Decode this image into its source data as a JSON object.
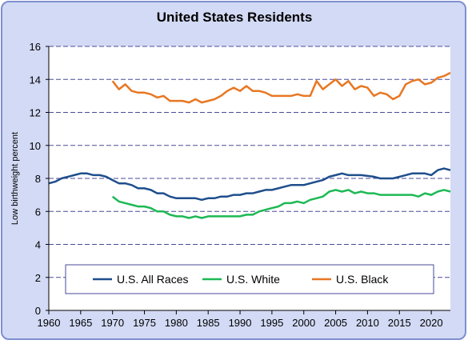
{
  "chart_data": {
    "type": "line",
    "title": "United States Residents",
    "xlabel": "",
    "ylabel": "Low birthweight percent",
    "xlim": [
      1960,
      2023
    ],
    "ylim": [
      0,
      16
    ],
    "x_ticks": [
      "1960",
      "1965",
      "1970",
      "1975",
      "1980",
      "1985",
      "1990",
      "1995",
      "2000",
      "2005",
      "2010",
      "2015",
      "2020"
    ],
    "y_ticks": [
      "0",
      "2",
      "4",
      "6",
      "8",
      "10",
      "12",
      "14",
      "16"
    ],
    "grid": "horizontal dashed",
    "legend_position": "bottom-inside",
    "series": [
      {
        "name": "U.S. All Races",
        "color": "#1f4e8c",
        "points": [
          [
            1960,
            7.7
          ],
          [
            1961,
            7.8
          ],
          [
            1962,
            8.0
          ],
          [
            1963,
            8.1
          ],
          [
            1964,
            8.2
          ],
          [
            1965,
            8.3
          ],
          [
            1966,
            8.3
          ],
          [
            1967,
            8.2
          ],
          [
            1968,
            8.2
          ],
          [
            1969,
            8.1
          ],
          [
            1970,
            7.9
          ],
          [
            1971,
            7.7
          ],
          [
            1972,
            7.7
          ],
          [
            1973,
            7.6
          ],
          [
            1974,
            7.4
          ],
          [
            1975,
            7.4
          ],
          [
            1976,
            7.3
          ],
          [
            1977,
            7.1
          ],
          [
            1978,
            7.1
          ],
          [
            1979,
            6.9
          ],
          [
            1980,
            6.8
          ],
          [
            1981,
            6.8
          ],
          [
            1982,
            6.8
          ],
          [
            1983,
            6.8
          ],
          [
            1984,
            6.7
          ],
          [
            1985,
            6.8
          ],
          [
            1986,
            6.8
          ],
          [
            1987,
            6.9
          ],
          [
            1988,
            6.9
          ],
          [
            1989,
            7.0
          ],
          [
            1990,
            7.0
          ],
          [
            1991,
            7.1
          ],
          [
            1992,
            7.1
          ],
          [
            1993,
            7.2
          ],
          [
            1994,
            7.3
          ],
          [
            1995,
            7.3
          ],
          [
            1996,
            7.4
          ],
          [
            1997,
            7.5
          ],
          [
            1998,
            7.6
          ],
          [
            1999,
            7.6
          ],
          [
            2000,
            7.6
          ],
          [
            2001,
            7.7
          ],
          [
            2002,
            7.8
          ],
          [
            2003,
            7.9
          ],
          [
            2004,
            8.1
          ],
          [
            2005,
            8.2
          ],
          [
            2006,
            8.3
          ],
          [
            2007,
            8.2
          ],
          [
            2008,
            8.2
          ],
          [
            2009,
            8.2
          ],
          [
            2010,
            8.15
          ],
          [
            2011,
            8.1
          ],
          [
            2012,
            8.0
          ],
          [
            2013,
            8.0
          ],
          [
            2014,
            8.0
          ],
          [
            2015,
            8.1
          ],
          [
            2016,
            8.2
          ],
          [
            2017,
            8.3
          ],
          [
            2018,
            8.3
          ],
          [
            2019,
            8.3
          ],
          [
            2020,
            8.2
          ],
          [
            2021,
            8.5
          ],
          [
            2022,
            8.6
          ],
          [
            2023,
            8.5
          ]
        ]
      },
      {
        "name": "U.S. White",
        "color": "#1db954",
        "points": [
          [
            1970,
            6.9
          ],
          [
            1971,
            6.6
          ],
          [
            1972,
            6.5
          ],
          [
            1973,
            6.4
          ],
          [
            1974,
            6.3
          ],
          [
            1975,
            6.3
          ],
          [
            1976,
            6.2
          ],
          [
            1977,
            6.0
          ],
          [
            1978,
            6.0
          ],
          [
            1979,
            5.8
          ],
          [
            1980,
            5.7
          ],
          [
            1981,
            5.7
          ],
          [
            1982,
            5.6
          ],
          [
            1983,
            5.7
          ],
          [
            1984,
            5.6
          ],
          [
            1985,
            5.7
          ],
          [
            1986,
            5.7
          ],
          [
            1987,
            5.7
          ],
          [
            1988,
            5.7
          ],
          [
            1989,
            5.7
          ],
          [
            1990,
            5.7
          ],
          [
            1991,
            5.8
          ],
          [
            1992,
            5.8
          ],
          [
            1993,
            6.0
          ],
          [
            1994,
            6.1
          ],
          [
            1995,
            6.2
          ],
          [
            1996,
            6.3
          ],
          [
            1997,
            6.5
          ],
          [
            1998,
            6.5
          ],
          [
            1999,
            6.6
          ],
          [
            2000,
            6.5
          ],
          [
            2001,
            6.7
          ],
          [
            2002,
            6.8
          ],
          [
            2003,
            6.9
          ],
          [
            2004,
            7.2
          ],
          [
            2005,
            7.3
          ],
          [
            2006,
            7.2
          ],
          [
            2007,
            7.3
          ],
          [
            2008,
            7.1
          ],
          [
            2009,
            7.2
          ],
          [
            2010,
            7.1
          ],
          [
            2011,
            7.1
          ],
          [
            2012,
            7.0
          ],
          [
            2013,
            7.0
          ],
          [
            2014,
            7.0
          ],
          [
            2015,
            7.0
          ],
          [
            2016,
            7.0
          ],
          [
            2017,
            7.0
          ],
          [
            2018,
            6.9
          ],
          [
            2019,
            7.1
          ],
          [
            2020,
            7.0
          ],
          [
            2021,
            7.2
          ],
          [
            2022,
            7.3
          ],
          [
            2023,
            7.2
          ]
        ]
      },
      {
        "name": "U.S. Black",
        "color": "#e87722",
        "points": [
          [
            1970,
            13.9
          ],
          [
            1971,
            13.4
          ],
          [
            1972,
            13.7
          ],
          [
            1973,
            13.3
          ],
          [
            1974,
            13.2
          ],
          [
            1975,
            13.2
          ],
          [
            1976,
            13.1
          ],
          [
            1977,
            12.9
          ],
          [
            1978,
            13.0
          ],
          [
            1979,
            12.7
          ],
          [
            1980,
            12.7
          ],
          [
            1981,
            12.7
          ],
          [
            1982,
            12.6
          ],
          [
            1983,
            12.8
          ],
          [
            1984,
            12.6
          ],
          [
            1985,
            12.7
          ],
          [
            1986,
            12.8
          ],
          [
            1987,
            13.0
          ],
          [
            1988,
            13.3
          ],
          [
            1989,
            13.5
          ],
          [
            1990,
            13.3
          ],
          [
            1991,
            13.6
          ],
          [
            1992,
            13.3
          ],
          [
            1993,
            13.3
          ],
          [
            1994,
            13.2
          ],
          [
            1995,
            13.0
          ],
          [
            1996,
            13.0
          ],
          [
            1997,
            13.0
          ],
          [
            1998,
            13.0
          ],
          [
            1999,
            13.1
          ],
          [
            2000,
            13.0
          ],
          [
            2001,
            13.0
          ],
          [
            2002,
            13.9
          ],
          [
            2003,
            13.4
          ],
          [
            2004,
            13.7
          ],
          [
            2005,
            14.0
          ],
          [
            2006,
            13.6
          ],
          [
            2007,
            13.9
          ],
          [
            2008,
            13.4
          ],
          [
            2009,
            13.6
          ],
          [
            2010,
            13.5
          ],
          [
            2011,
            13.0
          ],
          [
            2012,
            13.2
          ],
          [
            2013,
            13.1
          ],
          [
            2014,
            12.8
          ],
          [
            2015,
            13.0
          ],
          [
            2016,
            13.7
          ],
          [
            2017,
            13.9
          ],
          [
            2018,
            14.0
          ],
          [
            2019,
            13.7
          ],
          [
            2020,
            13.8
          ],
          [
            2021,
            14.1
          ],
          [
            2022,
            14.2
          ],
          [
            2023,
            14.4
          ]
        ]
      }
    ]
  }
}
